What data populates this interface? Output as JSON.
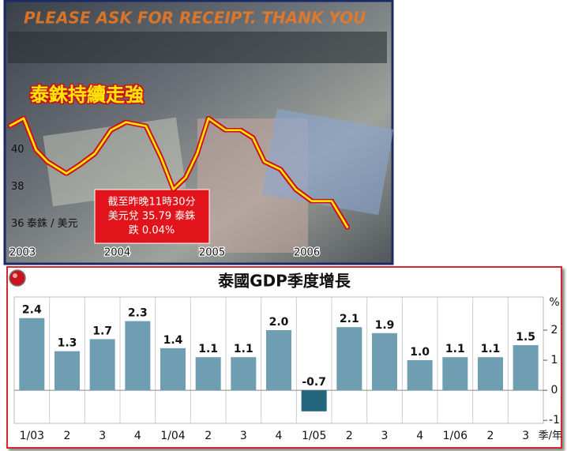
{
  "chart_data": [
    {
      "type": "line",
      "watermark": "PLEASE ASK FOR RECEIPT. THANK YOU",
      "title": "泰銖持續走強",
      "ylabel": "泰銖 / 美元",
      "annotation": [
        "截至昨晚11時30分",
        "美元兌 35.79 泰銖",
        "跌 0.04%"
      ],
      "x": [
        2003.0,
        2003.15,
        2003.28,
        2003.4,
        2003.6,
        2003.73,
        2003.9,
        2004.07,
        2004.23,
        2004.44,
        2004.6,
        2004.73,
        2004.86,
        2004.98,
        2005.1,
        2005.28,
        2005.44,
        2005.57,
        2005.69,
        2005.86,
        2006.02,
        2006.19,
        2006.4,
        2006.57
      ],
      "series": [
        {
          "name": "泰銖 / 美元",
          "color": "#ffe600",
          "values": [
            41.28,
            41.7,
            40.0,
            39.36,
            38.72,
            39.15,
            39.79,
            41.06,
            41.49,
            41.28,
            39.57,
            37.87,
            38.51,
            39.79,
            41.7,
            41.06,
            41.06,
            40.64,
            39.36,
            38.94,
            37.87,
            37.23,
            37.23,
            35.79
          ]
        }
      ],
      "xlim": [
        2003,
        2006.65
      ],
      "xticks": [
        2003,
        2004,
        2005,
        2006
      ],
      "ylim": [
        35,
        42.2
      ],
      "yticks": [
        40,
        38,
        36
      ]
    },
    {
      "type": "bar",
      "title": "泰國GDP季度增長",
      "ylabel": "%",
      "xlabel": "季/年",
      "categories": [
        "1/03",
        "2",
        "3",
        "4",
        "1/04",
        "2",
        "3",
        "4",
        "1/05",
        "2",
        "3",
        "4",
        "1/06",
        "2",
        "3"
      ],
      "values": [
        2.4,
        1.3,
        1.7,
        2.3,
        1.4,
        1.1,
        1.1,
        2.0,
        -0.7,
        2.1,
        1.9,
        1.0,
        1.1,
        1.1,
        1.5
      ],
      "value_labels": [
        "2.4",
        "1.3",
        "1.7",
        "2.3",
        "1.4",
        "1.1",
        "1.1",
        "2.0",
        "-0.7",
        "2.1",
        "1.9",
        "1.0",
        "1.1",
        "1.1",
        "1.5"
      ],
      "color": "#6f9db2",
      "negative_color": "#23667d",
      "ylim": [
        -1.1,
        3.05
      ],
      "yticks": [
        2,
        1,
        0,
        -1
      ],
      "grid": true
    }
  ]
}
